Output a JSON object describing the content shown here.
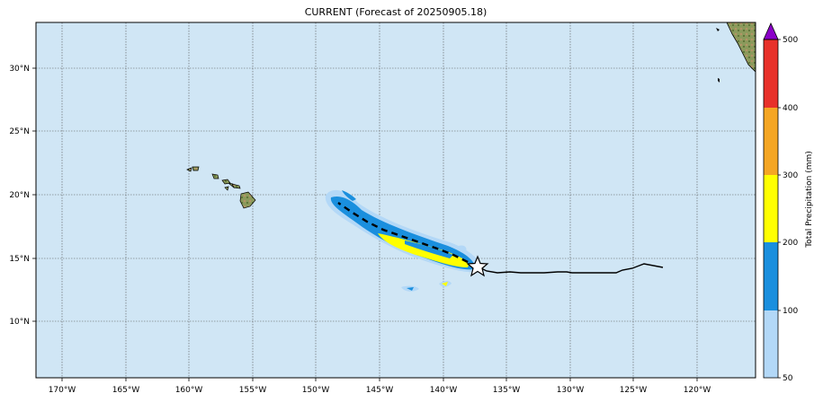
{
  "map": {
    "title": "CURRENT (Forecast of 20250905.18)",
    "lon_ticks": [
      "170°W",
      "165°W",
      "160°W",
      "155°W",
      "150°W",
      "145°W",
      "140°W",
      "135°W",
      "130°W",
      "125°W",
      "120°W"
    ],
    "lat_ticks": [
      "30°N",
      "25°N",
      "20°N",
      "15°N",
      "10°N"
    ],
    "ocean_color": "#d0e6f5",
    "land_color": "#8a9a5b",
    "grid": "on (dotted)"
  },
  "colorbar": {
    "label": "Total Precipitation (mm)",
    "ticks": [
      "500",
      "400",
      "300",
      "200",
      "100",
      "50"
    ],
    "colors": [
      "#b3d8f7",
      "#1a8fde",
      "#ffff00",
      "#f5a623",
      "#e8312a",
      "#8b00c8"
    ],
    "boundaries_mm": [
      50,
      100,
      200,
      300,
      400,
      500
    ]
  },
  "track": {
    "current_position": "star-icon",
    "forecast_line": "dashed",
    "history_line": "solid"
  }
}
